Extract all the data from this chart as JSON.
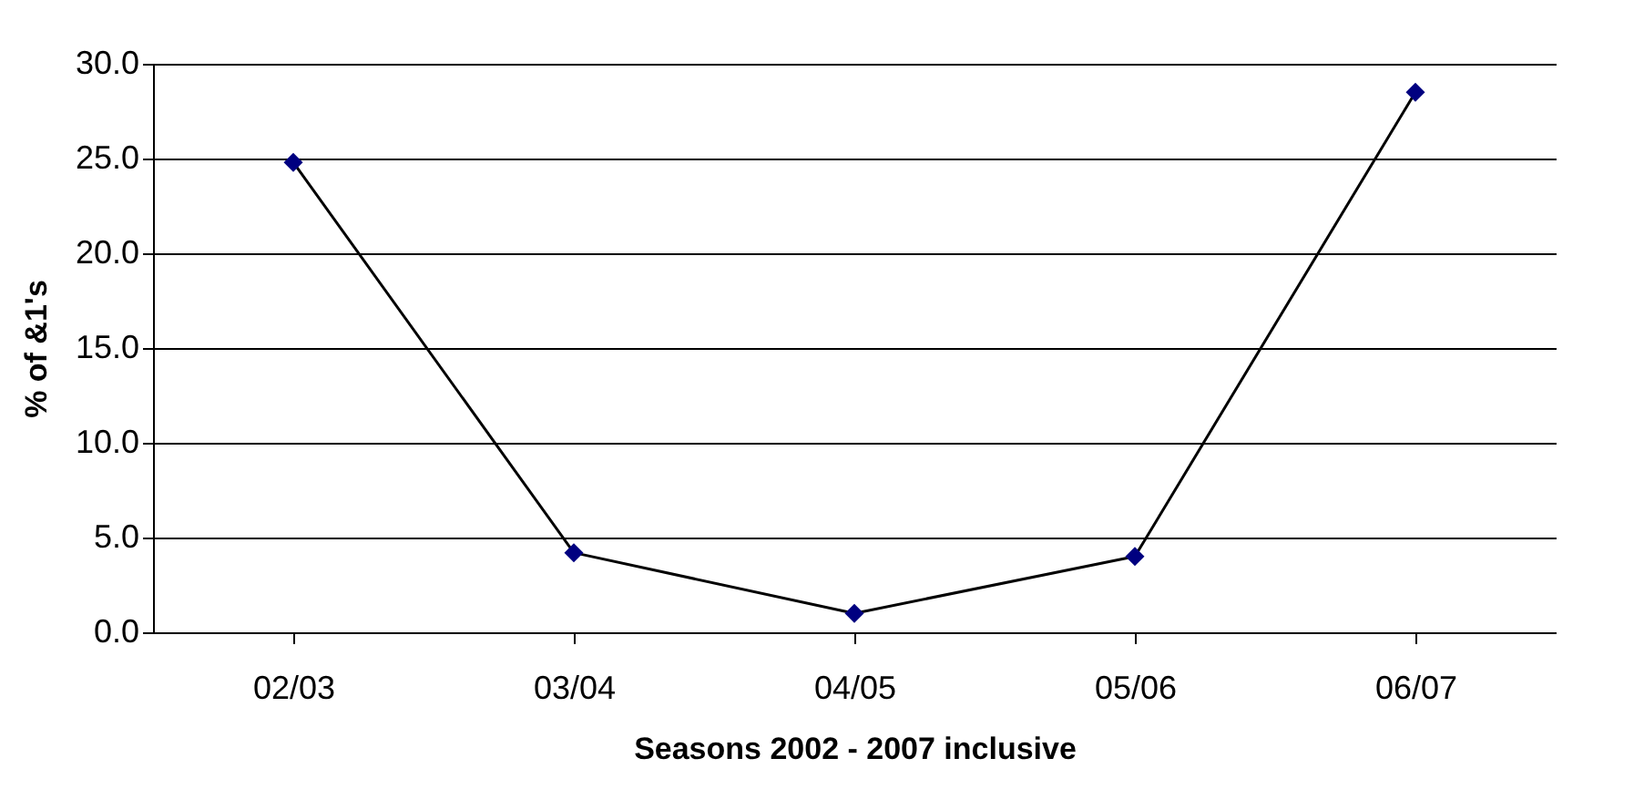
{
  "chart_data": {
    "type": "line",
    "xlabel": "Seasons 2002 - 2007 inclusive",
    "ylabel": "% of &1's",
    "categories": [
      "02/03",
      "03/04",
      "04/05",
      "05/06",
      "06/07"
    ],
    "series": [
      {
        "color": "#000080",
        "values": [
          24.8,
          4.2,
          1.0,
          4.0,
          28.5
        ]
      }
    ],
    "ylim": [
      0,
      30
    ],
    "yticks": [
      {
        "value": 0,
        "label": "0.0"
      },
      {
        "value": 5,
        "label": "5.0"
      },
      {
        "value": 10,
        "label": "10.0"
      },
      {
        "value": 15,
        "label": "15.0"
      },
      {
        "value": 20,
        "label": "20.0"
      },
      {
        "value": 25,
        "label": "25.0"
      },
      {
        "value": 30,
        "label": "30.0"
      }
    ],
    "grid": "y",
    "marker": "diamond",
    "line_style": "solid"
  }
}
